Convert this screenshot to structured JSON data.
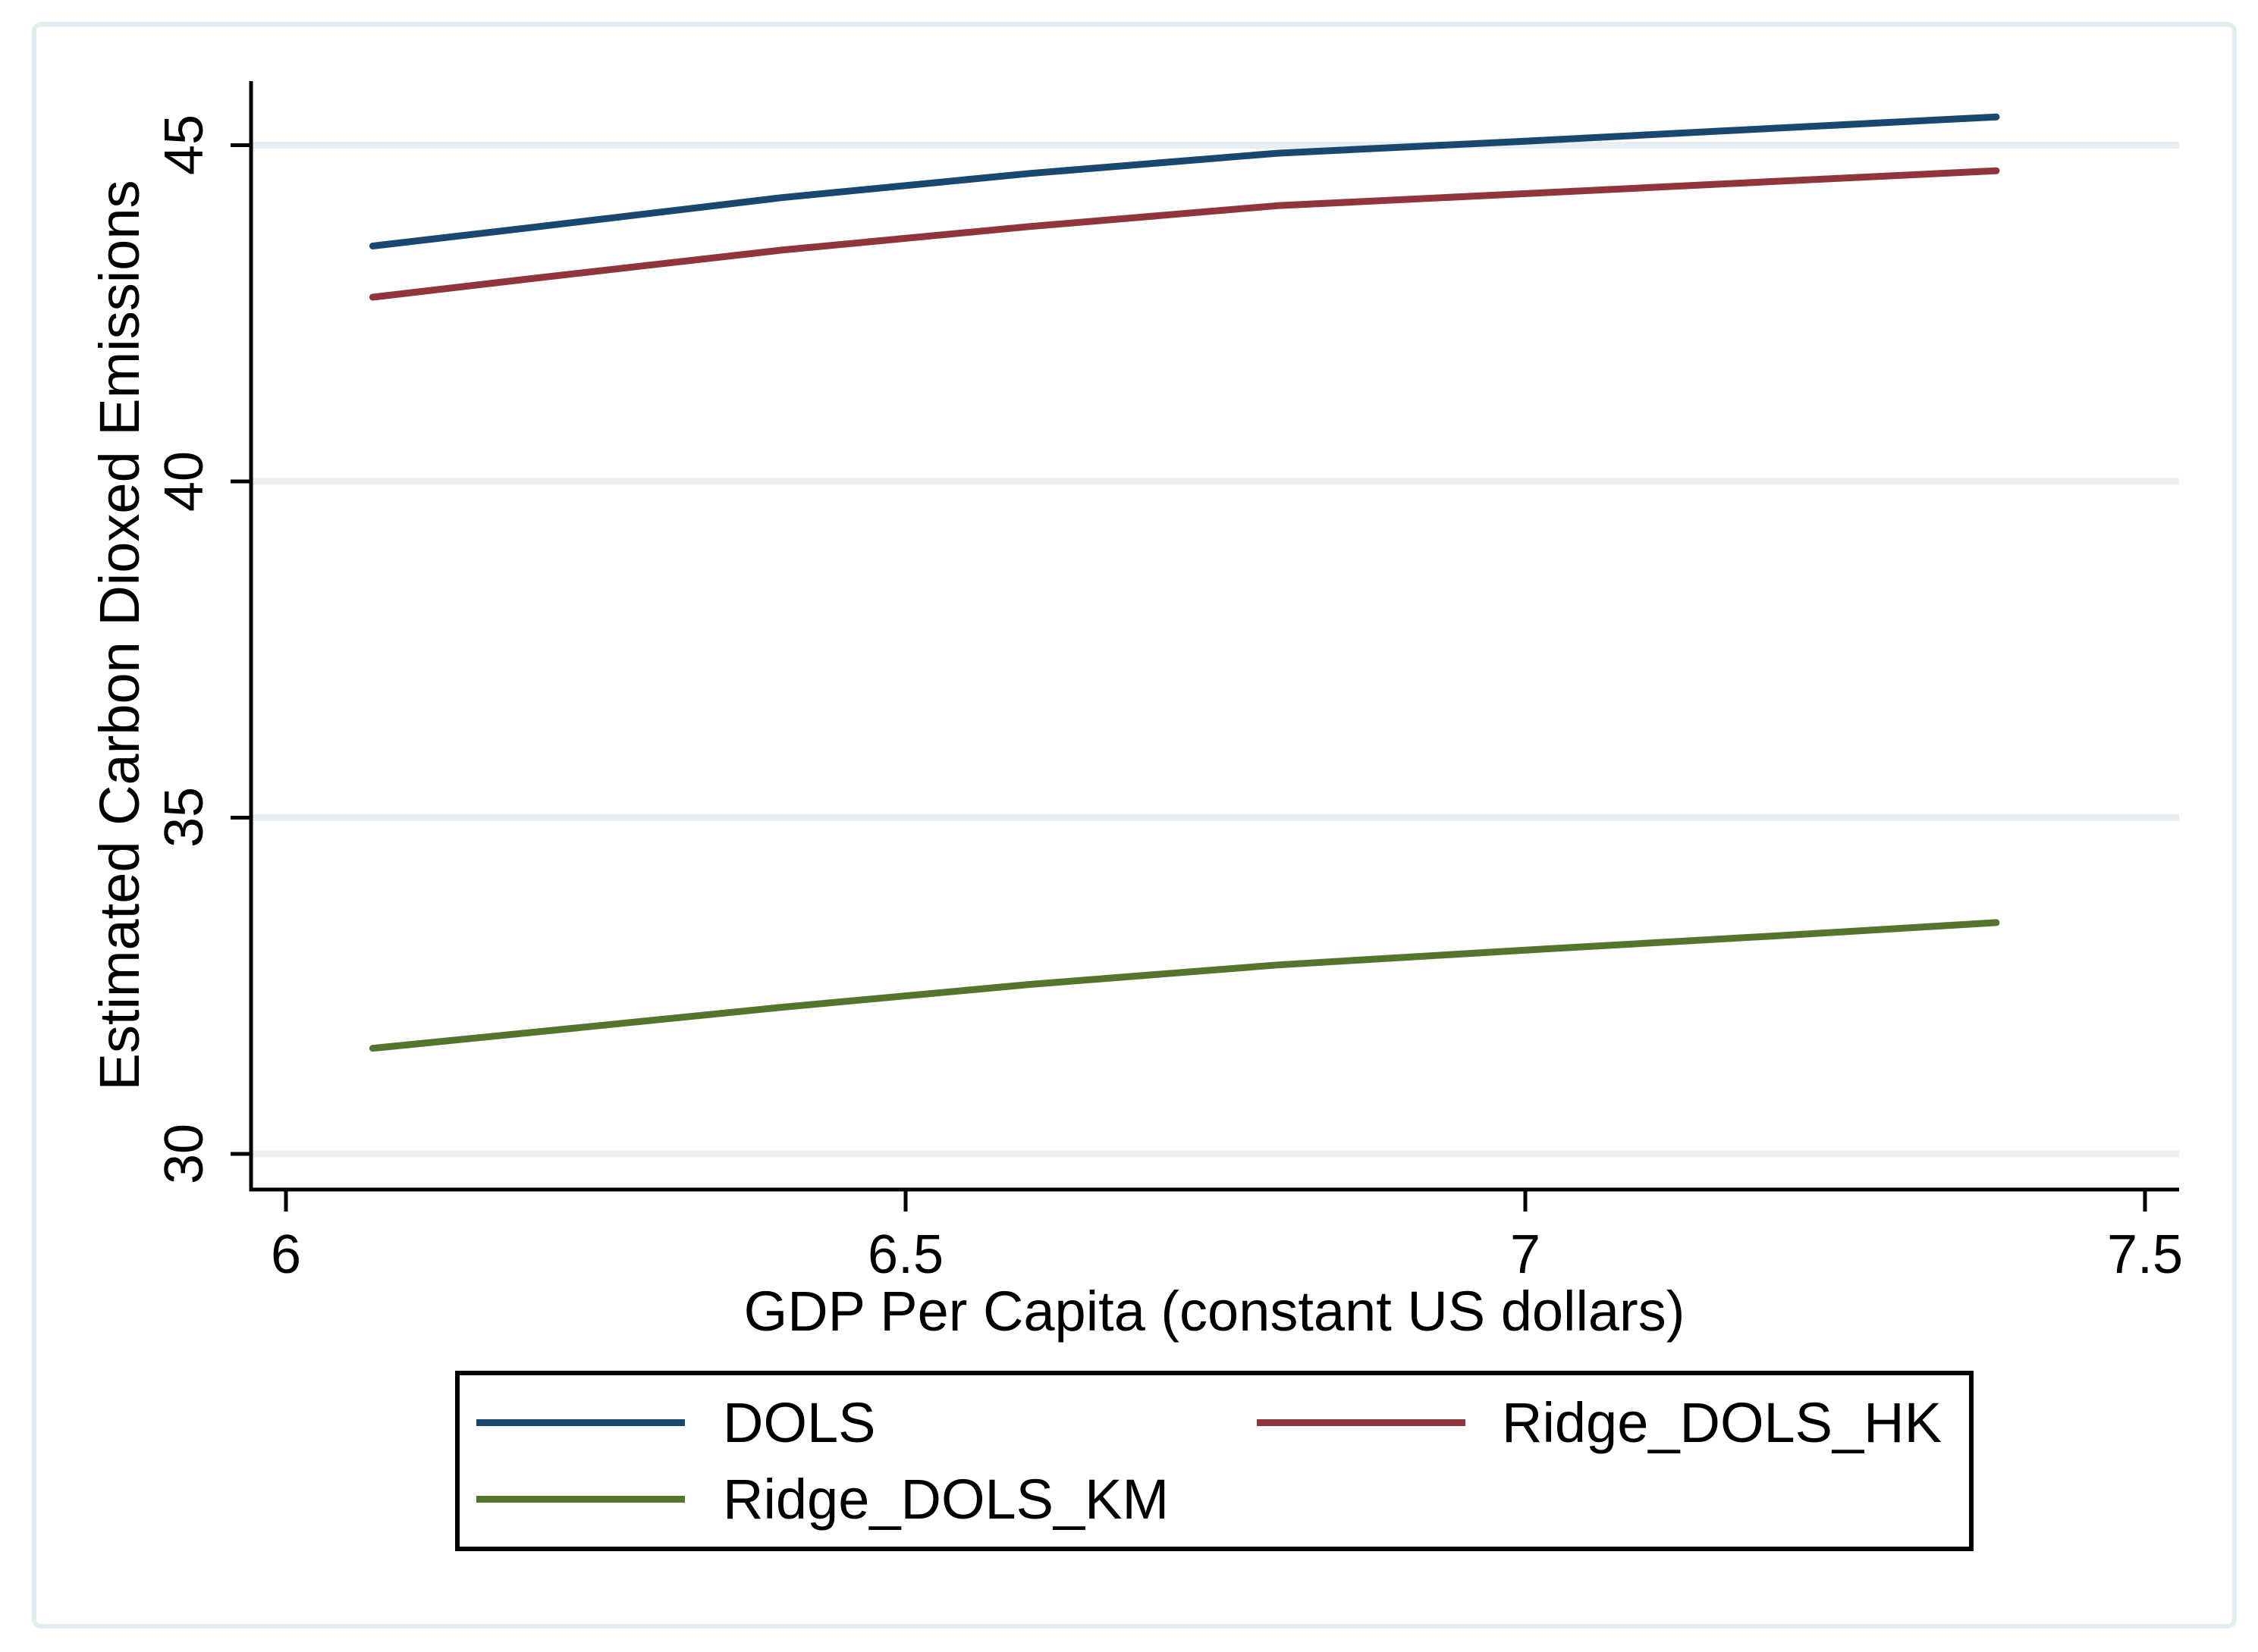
{
  "chart_data": {
    "type": "line",
    "title": "",
    "xlabel": "GDP Per Capita (constant US dollars)",
    "ylabel": "Estimated Carbon Dioxed Emissions",
    "xlim": [
      5.97,
      7.53
    ],
    "ylim": [
      29.5,
      45.95
    ],
    "x_ticks": [
      6,
      6.5,
      7,
      7.5
    ],
    "x_tick_labels": [
      "6",
      "6.5",
      "7",
      "7.5"
    ],
    "y_ticks": [
      30,
      35,
      40,
      45
    ],
    "y_tick_labels": [
      "30",
      "35",
      "40",
      "45"
    ],
    "grid": "horizontal-only",
    "legend_position": "bottom-outside",
    "x": [
      6.07,
      6.2,
      6.4,
      6.6,
      6.8,
      7.0,
      7.2,
      7.38
    ],
    "series": [
      {
        "name": "DOLS",
        "color": "#1A476F",
        "values": [
          43.5,
          43.78,
          44.22,
          44.58,
          44.88,
          45.06,
          45.25,
          45.42
        ]
      },
      {
        "name": "Ridge_DOLS_HK",
        "color": "#90353B",
        "values": [
          42.74,
          43.02,
          43.44,
          43.79,
          44.1,
          44.28,
          44.46,
          44.62
        ]
      },
      {
        "name": "Ridge_DOLS_KM",
        "color": "#55752F",
        "values": [
          31.57,
          31.81,
          32.18,
          32.52,
          32.81,
          33.03,
          33.24,
          33.44
        ]
      }
    ]
  },
  "colors": {
    "gridline": "#E8EEF1",
    "frame_border": "#E4ECEF",
    "axis": "#000000",
    "background": "#FFFFFF"
  }
}
